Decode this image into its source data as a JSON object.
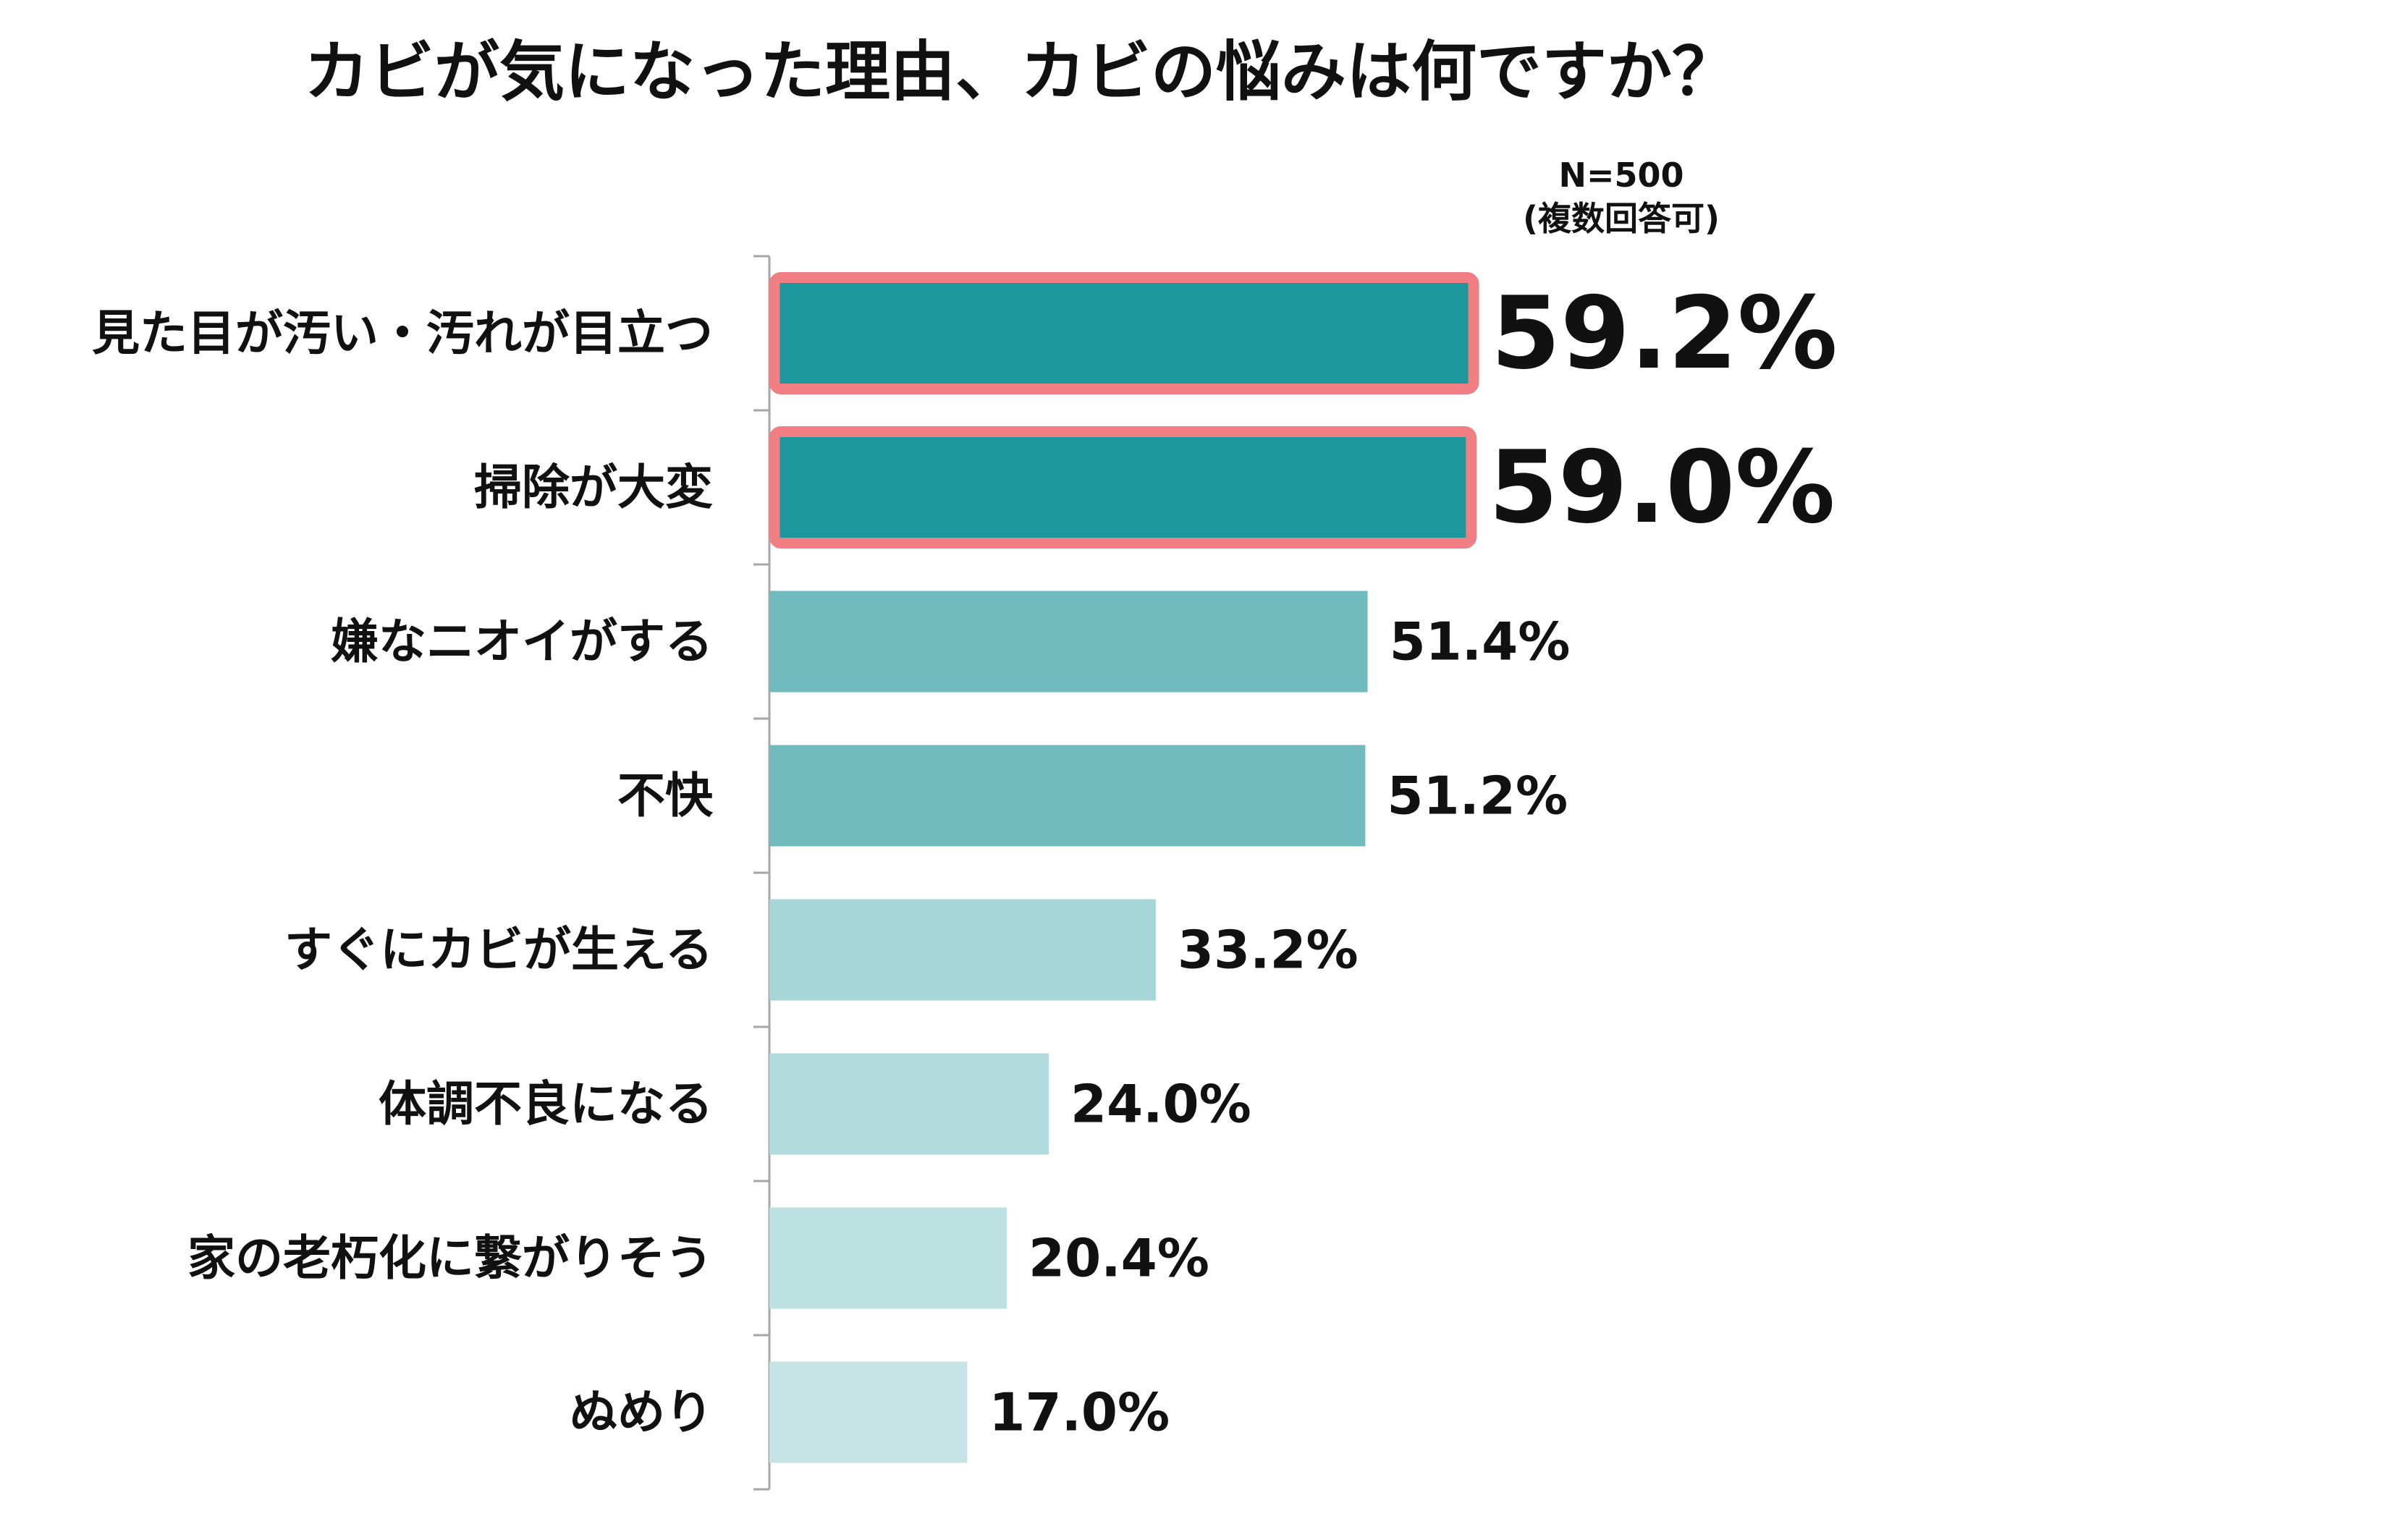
{
  "chart_data": {
    "type": "bar",
    "orientation": "horizontal",
    "title": "カビが気になった理由、カビの悩みは何ですか？",
    "sample_note": "N=500",
    "multi_note": "(複数回答可)",
    "categories": [
      "見た目が汚い・汚れが目立つ",
      "掃除が大変",
      "嫌なニオイがする",
      "不快",
      "すぐにカビが生える",
      "体調不良になる",
      "家の老朽化に繋がりそう",
      "ぬめり"
    ],
    "values": [
      59.2,
      59.0,
      51.4,
      51.2,
      33.2,
      24.0,
      20.4,
      17.0
    ],
    "value_labels": [
      "59.2%",
      "59.0%",
      "51.4%",
      "51.2%",
      "33.2%",
      "24.0%",
      "20.4%",
      "17.0%"
    ],
    "highlighted": [
      true,
      true,
      false,
      false,
      false,
      false,
      false,
      false
    ],
    "bar_colors": [
      "#1c979b",
      "#1c979b",
      "#6fbbbe",
      "#6fbbbe",
      "#a7d6d8",
      "#b0dadc",
      "#bde0e1",
      "#c6e4e5"
    ],
    "highlight_border_color": "#f07e82",
    "highlight_text_color": "#1c979b",
    "label_color": "#111111",
    "xlim": [
      0,
      100
    ],
    "xlabel": "",
    "ylabel": "",
    "grid": false,
    "legend": "none"
  }
}
